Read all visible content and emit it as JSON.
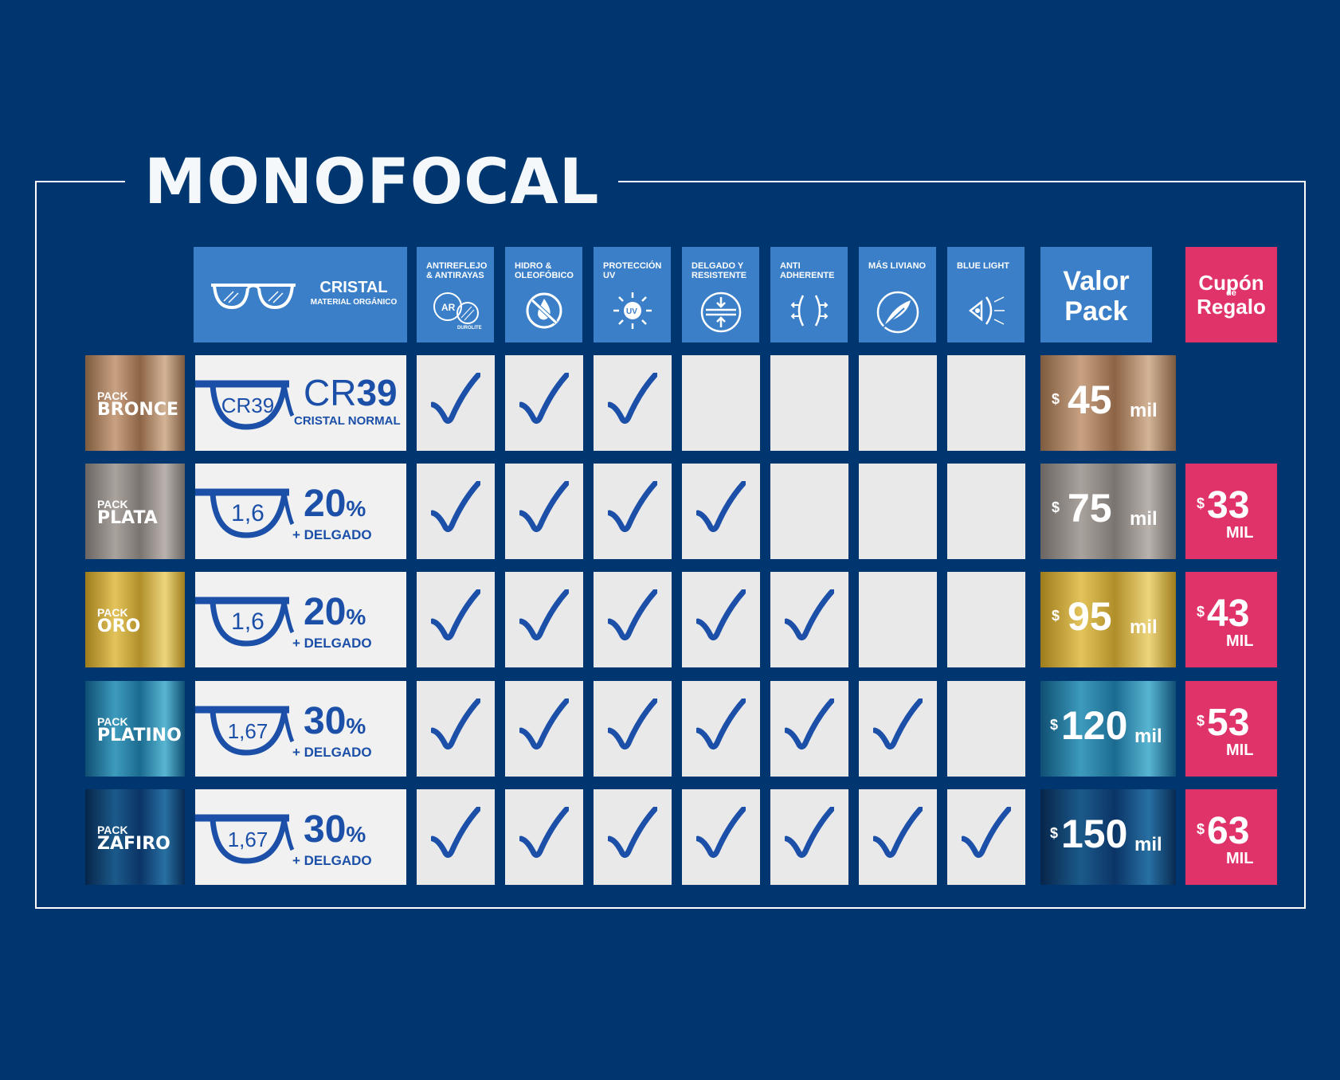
{
  "title": "MONOFOCAL",
  "header": {
    "cristal_title": "CRISTAL",
    "cristal_sub": "MATERIAL ORGÁNICO",
    "features": [
      {
        "label": "ANTIREFLEJO & ANTIRAYAS",
        "icon": "ar-lens-icon",
        "icon_text": "AR",
        "icon_sub": "DUROLITE"
      },
      {
        "label": "HIDRO & OLEOFÓBICO",
        "icon": "water-drop-icon"
      },
      {
        "label": "PROTECCIÓN UV",
        "icon": "uv-sun-icon",
        "icon_text": "UV"
      },
      {
        "label": "DELGADO Y RESISTENTE",
        "icon": "thin-lens-icon"
      },
      {
        "label": "ANTI ADHERENTE",
        "icon": "anti-adherent-icon"
      },
      {
        "label": "MÁS LIVIANO",
        "icon": "feather-icon"
      },
      {
        "label": "BLUE LIGHT",
        "icon": "blue-light-icon"
      }
    ],
    "valor_line1": "Valor",
    "valor_line2": "Pack",
    "cupon_line1": "Cupón",
    "cupon_de": "de",
    "cupon_line2": "Regalo"
  },
  "rows": [
    {
      "pack_label": "PACK",
      "pack_name": "BRONCE",
      "lens_code": "CR39",
      "lens_big_a": "CR",
      "lens_big_b": "39",
      "lens_sub": "CRISTAL NORMAL",
      "checks": [
        1,
        1,
        1,
        0,
        0,
        0,
        0
      ],
      "price_symbol": "$",
      "price": "45",
      "price_unit": "mil",
      "cupon": null
    },
    {
      "pack_label": "PACK",
      "pack_name": "PLATA",
      "lens_code": "1,6",
      "pct": "20",
      "pct_sign": "%",
      "lens_sub": "+ DELGADO",
      "checks": [
        1,
        1,
        1,
        1,
        0,
        0,
        0
      ],
      "price_symbol": "$",
      "price": "75",
      "price_unit": "mil",
      "cupon": {
        "symbol": "$",
        "value": "33",
        "unit": "MIL"
      }
    },
    {
      "pack_label": "PACK",
      "pack_name": "ORO",
      "lens_code": "1,6",
      "pct": "20",
      "pct_sign": "%",
      "lens_sub": "+ DELGADO",
      "checks": [
        1,
        1,
        1,
        1,
        1,
        0,
        0
      ],
      "price_symbol": "$",
      "price": "95",
      "price_unit": "mil",
      "cupon": {
        "symbol": "$",
        "value": "43",
        "unit": "MIL"
      }
    },
    {
      "pack_label": "PACK",
      "pack_name": "PLATINO",
      "lens_code": "1,67",
      "pct": "30",
      "pct_sign": "%",
      "lens_sub": "+ DELGADO",
      "checks": [
        1,
        1,
        1,
        1,
        1,
        1,
        0
      ],
      "price_symbol": "$",
      "price": "120",
      "price_unit": "mil",
      "cupon": {
        "symbol": "$",
        "value": "53",
        "unit": "MIL"
      }
    },
    {
      "pack_label": "PACK",
      "pack_name": "ZAFIRO",
      "lens_code": "1,67",
      "pct": "30",
      "pct_sign": "%",
      "lens_sub": "+ DELGADO",
      "checks": [
        1,
        1,
        1,
        1,
        1,
        1,
        1
      ],
      "price_symbol": "$",
      "price": "150",
      "price_unit": "mil",
      "cupon": {
        "symbol": "$",
        "value": "63",
        "unit": "MIL"
      }
    }
  ],
  "colors": {
    "background": "#003670",
    "header_blue": "#3a7fc8",
    "check_blue": "#1b4fa8",
    "cupon_pink": "#e0336a",
    "cell_grey": "#e9e9e9"
  }
}
